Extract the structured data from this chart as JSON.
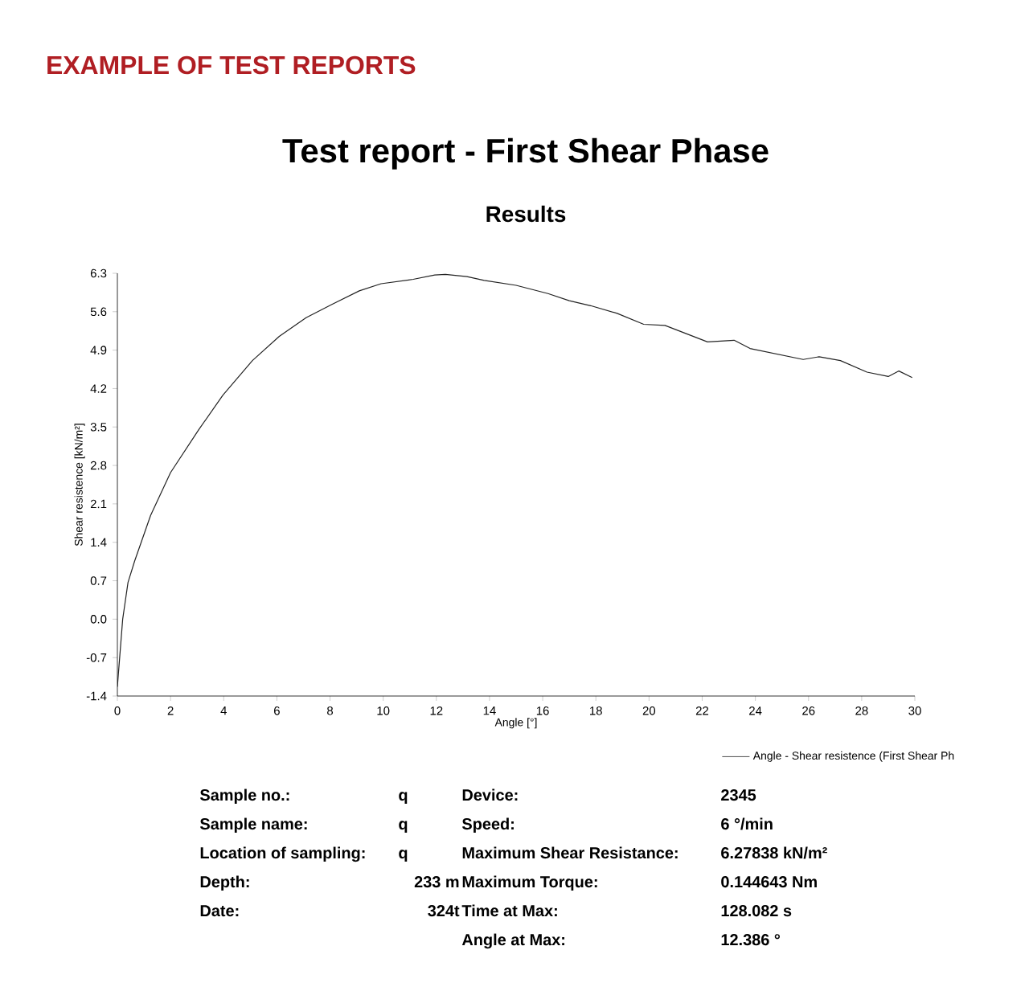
{
  "chart_data": {
    "type": "line",
    "title": "Test report - First Shear Phase",
    "subtitle": "Results",
    "xlabel": "Angle [°]",
    "ylabel": "Shear resistence [kN/m²]",
    "xlim": [
      0,
      30
    ],
    "xticks": [
      0,
      2,
      4,
      6,
      8,
      10,
      12,
      14,
      16,
      18,
      20,
      22,
      24,
      26,
      28,
      30
    ],
    "ylim": [
      -1.4,
      6.3
    ],
    "yticks": [
      -1.4,
      -0.7,
      {
        "value": 0,
        "label": "0.0"
      },
      0.7,
      1.4,
      2.1,
      2.8,
      3.5,
      4.2,
      4.9,
      5.6,
      6.3
    ],
    "legend": "bottom right",
    "series": [
      {
        "name": "Angle - Shear resistence (First Shear Ph",
        "color": "#222222",
        "x": [
          0,
          0.2,
          0.4,
          0.65,
          1.25,
          2.0,
          3.06,
          3.97,
          5.08,
          6.09,
          7.1,
          8.1,
          9.1,
          9.92,
          11.13,
          11.94,
          12.34,
          13.15,
          13.8,
          15.0,
          16.2,
          17.0,
          17.8,
          18.8,
          19.8,
          20.6,
          21.4,
          22.2,
          23.2,
          23.8,
          24.8,
          25.8,
          26.4,
          27.2,
          28.2,
          29.0,
          29.4,
          29.9
        ],
        "values": [
          -1.23,
          0.0,
          0.67,
          1.06,
          1.89,
          2.67,
          3.45,
          4.08,
          4.71,
          5.15,
          5.49,
          5.74,
          5.98,
          6.11,
          6.19,
          6.27,
          6.28,
          6.24,
          6.17,
          6.08,
          5.93,
          5.8,
          5.71,
          5.57,
          5.37,
          5.35,
          5.2,
          5.05,
          5.08,
          4.93,
          4.83,
          4.73,
          4.78,
          4.71,
          4.5,
          4.42,
          4.52,
          4.4
        ]
      }
    ],
    "annotations": [
      "EXAMPLE OF TEST REPORTS",
      "Sample no.:",
      "q",
      "Device:",
      "2345",
      "Sample name:",
      "q",
      "Speed:",
      "6 °/min",
      "Location of sampling:",
      "q",
      "Maximum Shear Resistance:",
      "6.27838  kN/m²",
      "Depth:",
      "233 m",
      "Maximum Torque:",
      "0.144643  Nm",
      "Date:",
      "324t",
      "Time at Max:",
      "128.082  s",
      "Angle at Max:",
      "12.386  °"
    ]
  }
}
